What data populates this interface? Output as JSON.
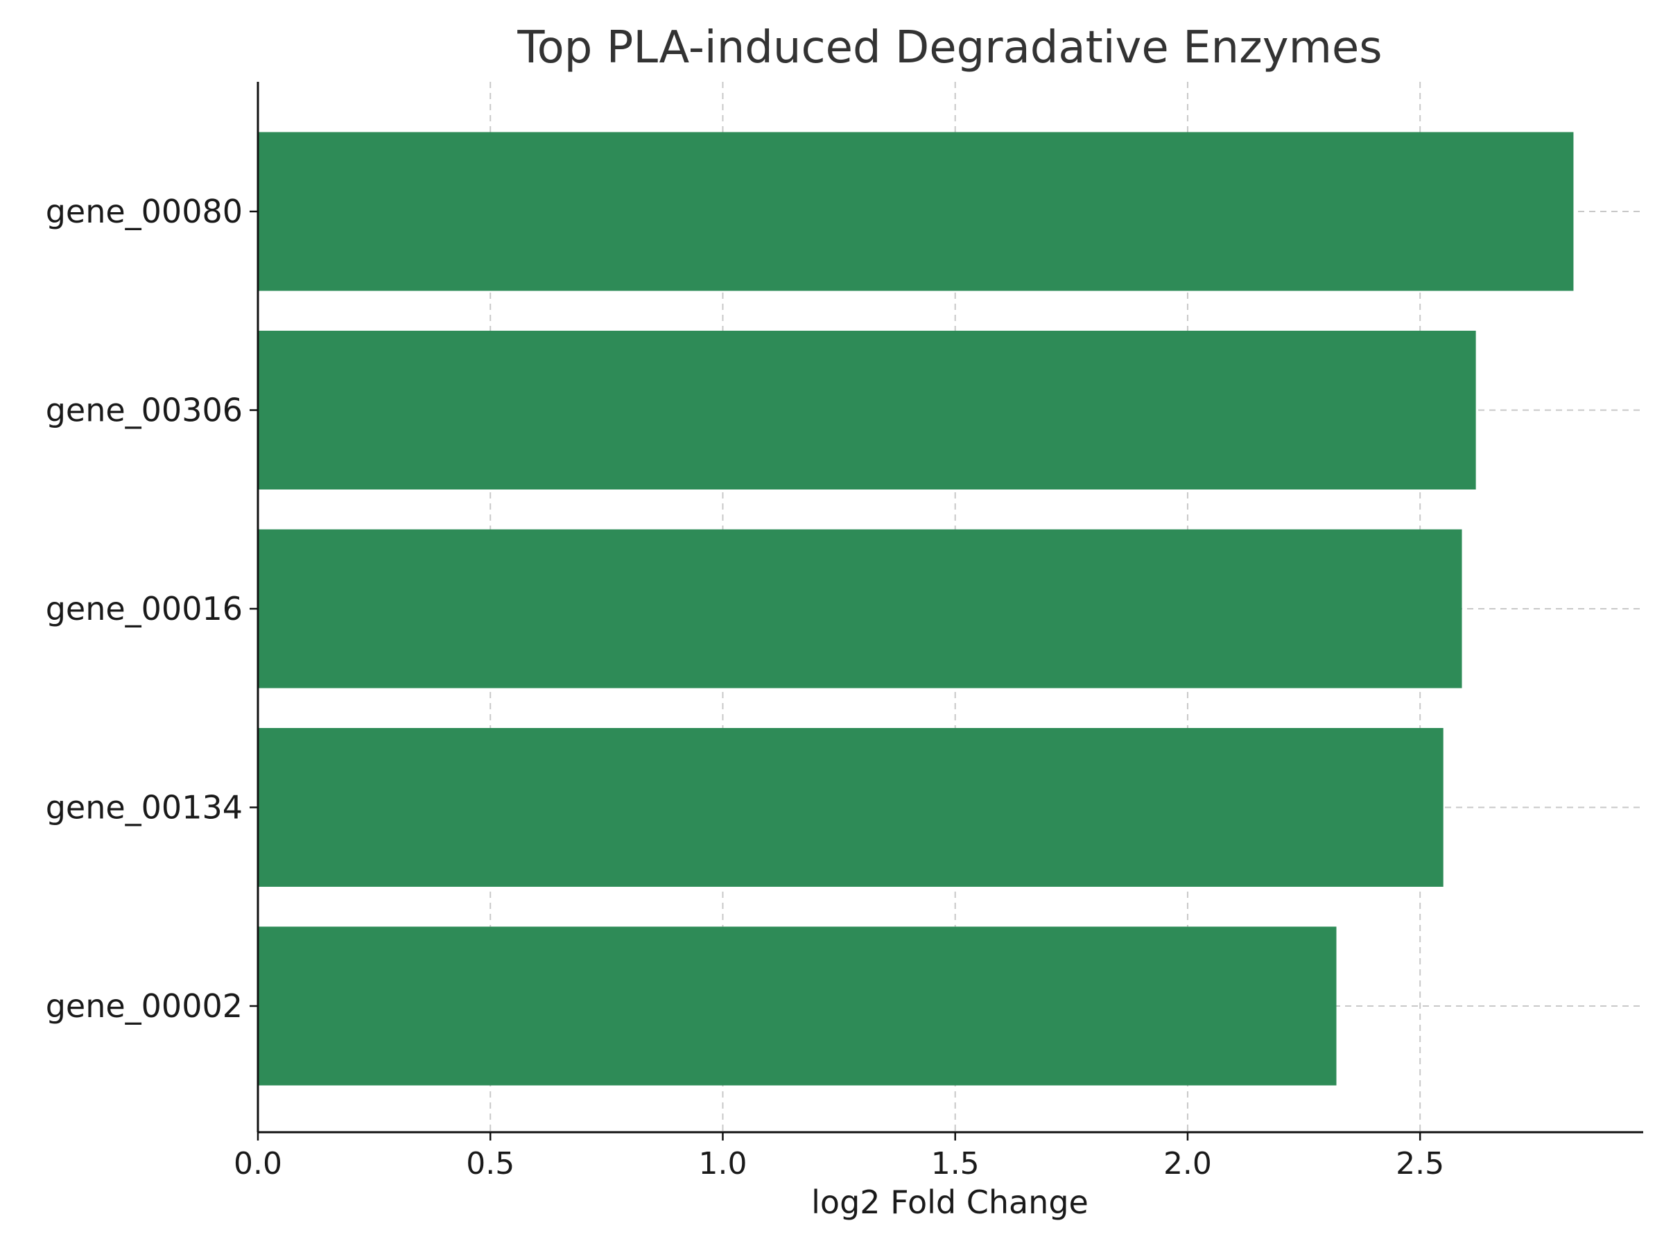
{
  "chart_data": {
    "type": "bar",
    "orientation": "horizontal",
    "title": "Top PLA-induced Degradative Enzymes",
    "xlabel": "log2 Fold Change",
    "ylabel": "",
    "categories": [
      "gene_00080",
      "gene_00306",
      "gene_00016",
      "gene_00134",
      "gene_00002"
    ],
    "values": [
      2.83,
      2.62,
      2.59,
      2.55,
      2.32
    ],
    "xlim": [
      0,
      2.98
    ],
    "xticks": [
      "0.0",
      "0.5",
      "1.0",
      "1.5",
      "2.0",
      "2.5"
    ],
    "grid": true,
    "bar_color": "#2e8b57"
  }
}
